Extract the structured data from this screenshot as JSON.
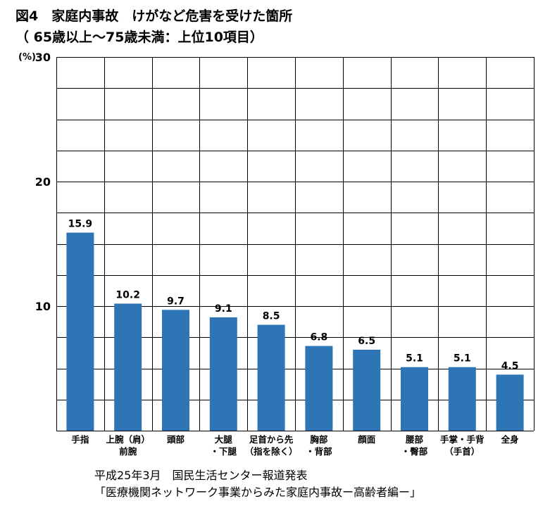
{
  "title_line1": "図4　家庭内事故　けがなど危害を受けた箇所",
  "title_line2": "（ 65歳以上～75歳未満：上位10項目）",
  "source_line1": "平成25年3月　国民生活センター報道発表",
  "source_line2": "「医療機関ネットワーク事業からみた家庭内事故ー高齢者編ー」",
  "chart_data": {
    "type": "bar",
    "title": "図4　家庭内事故　けがなど危害を受けた箇所（ 65歳以上～75歳未満：上位10項目）",
    "ylabel": "(%)",
    "ylim": [
      0,
      30
    ],
    "yticks": [
      "10",
      "20",
      "30"
    ],
    "grid": true,
    "bar_color": "#2e75b6",
    "categories": [
      [
        "手指"
      ],
      [
        "上腕（肩）",
        "前腕"
      ],
      [
        "頭部"
      ],
      [
        "大腿",
        "・下腿"
      ],
      [
        "足首から先",
        "（指を除く）"
      ],
      [
        "胸部",
        "・背部"
      ],
      [
        "顔面"
      ],
      [
        "腰部",
        "・臀部"
      ],
      [
        "手掌・手背",
        "（手首）"
      ],
      [
        "全身"
      ]
    ],
    "values": [
      "15.9",
      "10.2",
      "9.7",
      "9.1",
      "8.5",
      "6.8",
      "6.5",
      "5.1",
      "5.1",
      "4.5"
    ]
  }
}
